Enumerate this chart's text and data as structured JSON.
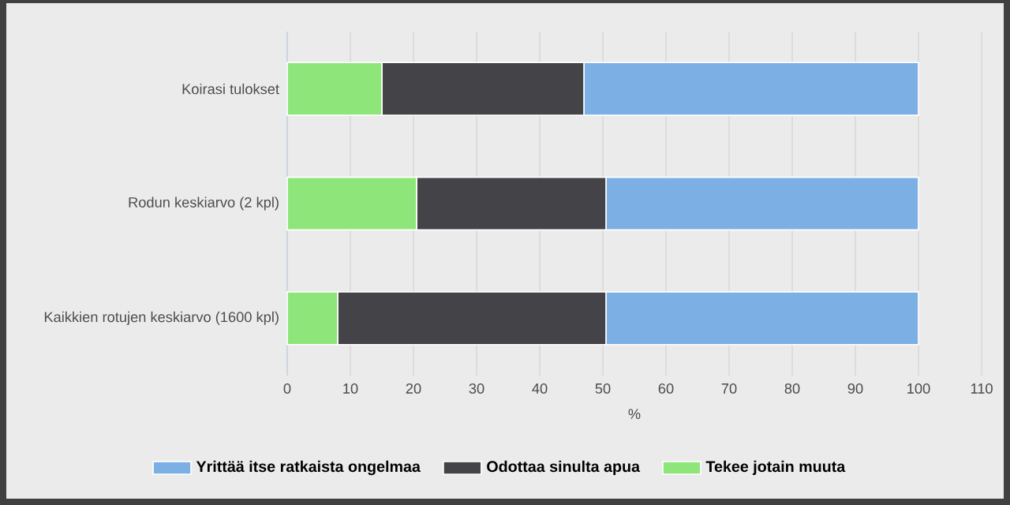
{
  "chart_data": {
    "type": "bar",
    "orientation": "horizontal",
    "stacked": true,
    "xlabel": "%",
    "categories": [
      "Koirasi tulokset",
      "Rodun keskiarvo (2 kpl)",
      "Kaikkien rotujen keskiarvo (1600 kpl)"
    ],
    "series": [
      {
        "name": "Tekee jotain muuta",
        "color": "#8ee67a",
        "values": [
          15,
          20.5,
          8
        ]
      },
      {
        "name": "Odottaa sinulta apua",
        "color": "#434348",
        "values": [
          32,
          30,
          42.5
        ]
      },
      {
        "name": "Yrittää itse ratkaista ongelmaa",
        "color": "#7cb0e5",
        "values": [
          53,
          49.5,
          49.5
        ]
      }
    ],
    "xlim": [
      0,
      110
    ],
    "xticks": [
      0,
      10,
      20,
      30,
      40,
      50,
      60,
      70,
      80,
      90,
      100,
      110
    ],
    "grid": "x",
    "legend": "bottom"
  }
}
